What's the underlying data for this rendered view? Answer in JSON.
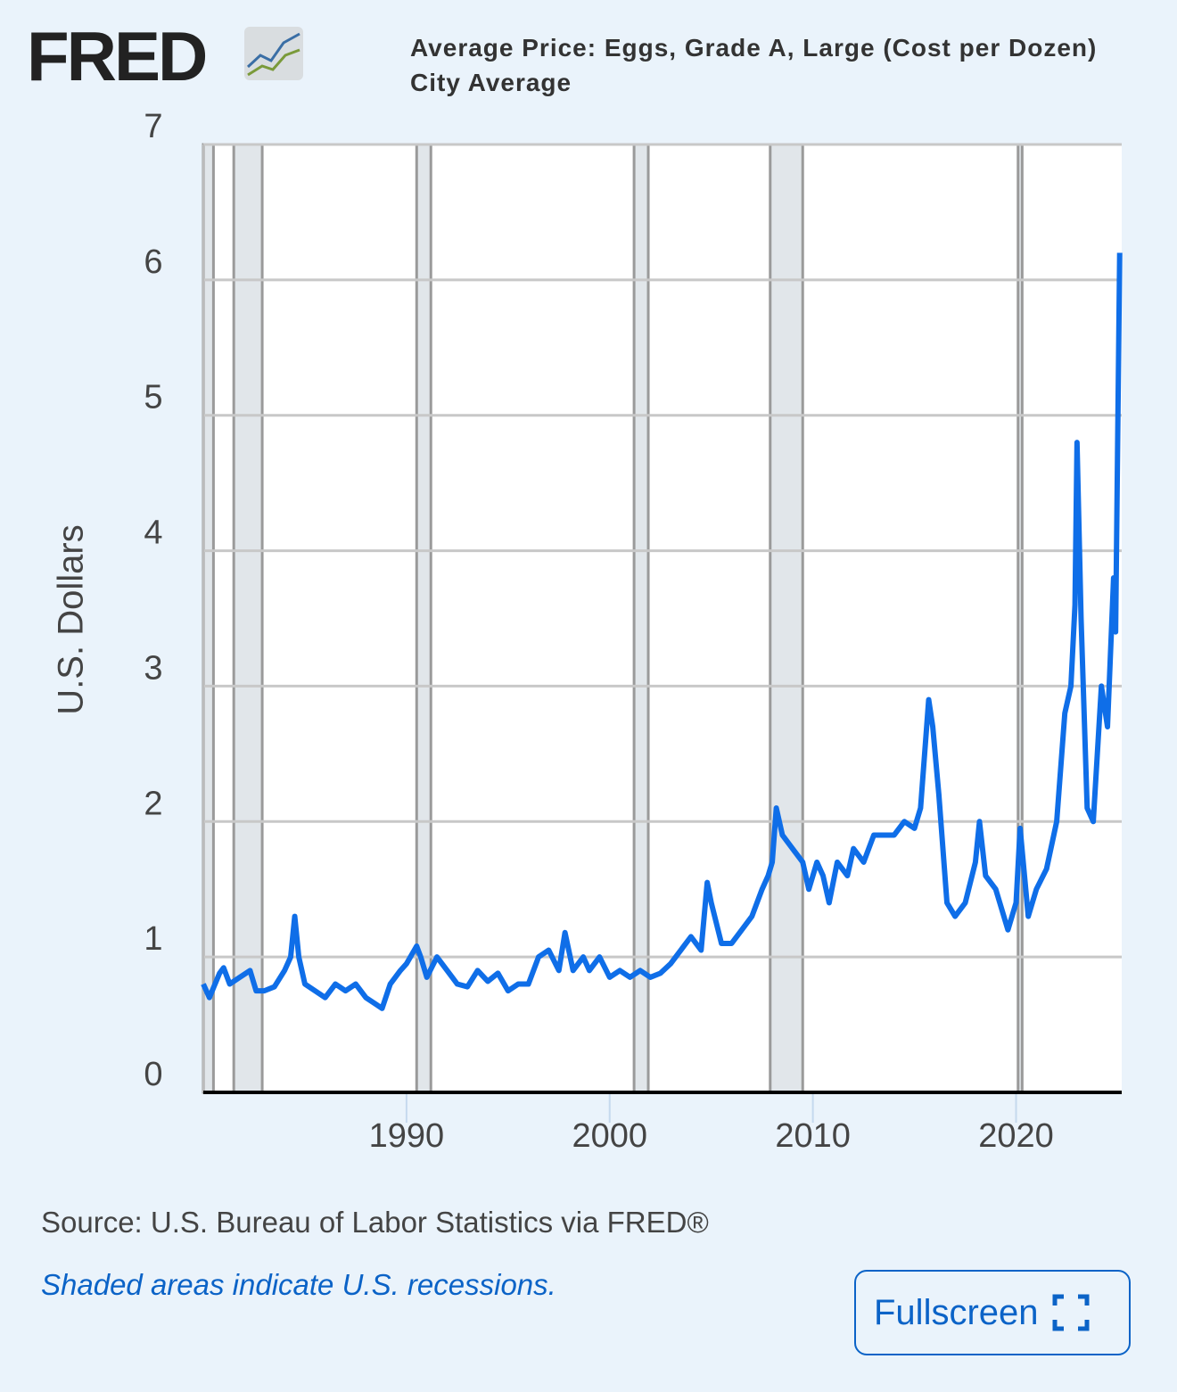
{
  "logo": "FRED",
  "source": "Source: U.S. Bureau of Labor Statistics via FRED®",
  "note": "Shaded areas indicate U.S. recessions.",
  "button": "Fullscreen",
  "chart_data": {
    "type": "line",
    "y_label": "U.S. Dollars",
    "x": [
      1980.0,
      1980.3,
      1980.8,
      1981.0,
      1981.3,
      1981.8,
      1982.3,
      1982.6,
      1983.0,
      1983.5,
      1984.0,
      1984.3,
      1984.5,
      1984.7,
      1985.0,
      1985.5,
      1986.0,
      1986.5,
      1987.0,
      1987.5,
      1988.0,
      1988.5,
      1988.8,
      1989.2,
      1989.7,
      1990.0,
      1990.5,
      1990.7,
      1991.0,
      1991.5,
      1992.0,
      1992.5,
      1993.0,
      1993.5,
      1994.0,
      1994.5,
      1995.0,
      1995.5,
      1996.0,
      1996.5,
      1997.0,
      1997.5,
      1997.8,
      1998.2,
      1998.7,
      1999.0,
      1999.5,
      2000.0,
      2000.5,
      2001.0,
      2001.5,
      2002.0,
      2002.5,
      2003.0,
      2003.5,
      2004.0,
      2004.5,
      2004.8,
      2005.0,
      2005.5,
      2006.0,
      2006.5,
      2007.0,
      2007.5,
      2007.8,
      2008.0,
      2008.2,
      2008.5,
      2009.0,
      2009.5,
      2009.8,
      2010.2,
      2010.5,
      2010.8,
      2011.2,
      2011.7,
      2012.0,
      2012.5,
      2013.0,
      2013.5,
      2014.0,
      2014.5,
      2015.0,
      2015.3,
      2015.7,
      2015.9,
      2016.2,
      2016.6,
      2017.0,
      2017.5,
      2018.0,
      2018.2,
      2018.5,
      2019.0,
      2019.6,
      2020.0,
      2020.2,
      2020.6,
      2021.0,
      2021.5,
      2022.0,
      2022.4,
      2022.7,
      2022.9,
      2023.0,
      2023.2,
      2023.5,
      2023.8,
      2024.0,
      2024.2,
      2024.5,
      2024.8,
      2024.9,
      2025.1
    ],
    "series": [
      {
        "name": "Average Price: Eggs, Grade A, Large (Cost per Dozen)\nCity Average",
        "color": "#0f6ee8",
        "values": [
          0.8,
          0.7,
          0.88,
          0.92,
          0.8,
          0.85,
          0.9,
          0.75,
          0.75,
          0.78,
          0.9,
          1.0,
          1.3,
          1.0,
          0.8,
          0.75,
          0.7,
          0.8,
          0.75,
          0.8,
          0.7,
          0.65,
          0.62,
          0.8,
          0.9,
          0.95,
          1.08,
          1.0,
          0.85,
          1.0,
          0.9,
          0.8,
          0.78,
          0.9,
          0.82,
          0.88,
          0.75,
          0.8,
          0.8,
          1.0,
          1.05,
          0.9,
          1.18,
          0.9,
          1.0,
          0.9,
          1.0,
          0.85,
          0.9,
          0.85,
          0.9,
          0.85,
          0.88,
          0.95,
          1.05,
          1.15,
          1.05,
          1.55,
          1.4,
          1.1,
          1.1,
          1.2,
          1.3,
          1.5,
          1.6,
          1.7,
          2.1,
          1.9,
          1.8,
          1.7,
          1.5,
          1.7,
          1.6,
          1.4,
          1.7,
          1.6,
          1.8,
          1.7,
          1.9,
          1.9,
          1.9,
          2.0,
          1.95,
          2.1,
          2.9,
          2.7,
          2.2,
          1.4,
          1.3,
          1.4,
          1.7,
          2.0,
          1.6,
          1.5,
          1.2,
          1.4,
          1.95,
          1.3,
          1.5,
          1.65,
          2.0,
          2.8,
          3.0,
          3.6,
          4.8,
          3.5,
          2.1,
          2.0,
          2.5,
          3.0,
          2.7,
          3.8,
          3.4,
          6.2
        ]
      }
    ],
    "recessions": [
      [
        1980.0,
        1980.5
      ],
      [
        1981.5,
        1982.9
      ],
      [
        1990.5,
        1991.2
      ],
      [
        2001.2,
        2001.9
      ],
      [
        2007.9,
        2009.5
      ],
      [
        2020.1,
        2020.3
      ]
    ],
    "xlim": [
      1980.0,
      2025.2
    ],
    "xticks": [
      1990,
      2000,
      2010,
      2020
    ],
    "ylim": [
      0,
      7
    ],
    "yticks": [
      0,
      1,
      2,
      3,
      4,
      5,
      6,
      7
    ],
    "grid": true
  }
}
